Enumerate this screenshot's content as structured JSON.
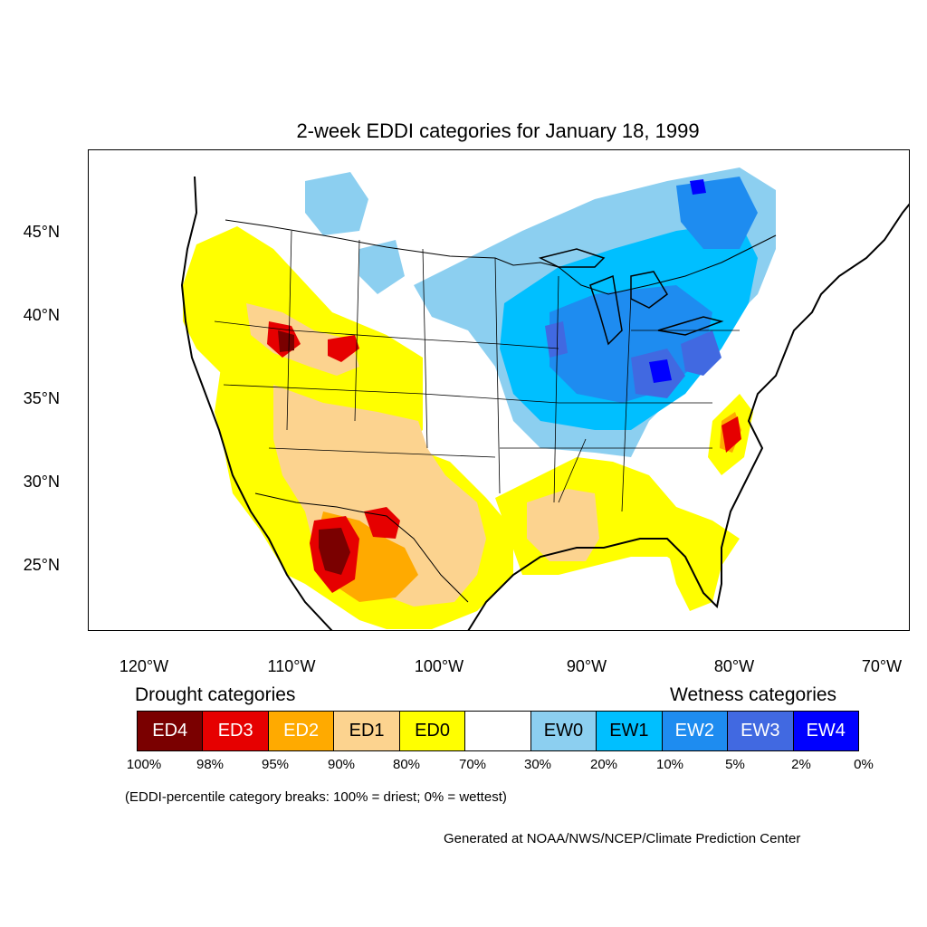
{
  "title": "2-week EDDI categories for January 18, 1999",
  "latitude_labels": [
    "45°N",
    "40°N",
    "35°N",
    "30°N",
    "25°N"
  ],
  "longitude_labels": [
    "120°W",
    "110°W",
    "100°W",
    "90°W",
    "80°W",
    "70°W"
  ],
  "legend": {
    "drought_heading": "Drought categories",
    "wetness_heading": "Wetness categories",
    "categories": [
      {
        "label": "ED4",
        "color": "#7a0000",
        "text_color": "#ffffff"
      },
      {
        "label": "ED3",
        "color": "#e60000",
        "text_color": "#ffffff"
      },
      {
        "label": "ED2",
        "color": "#ffaa00",
        "text_color": "#ffffff"
      },
      {
        "label": "ED1",
        "color": "#fcd38f",
        "text_color": "#000000"
      },
      {
        "label": "ED0",
        "color": "#ffff00",
        "text_color": "#000000"
      },
      {
        "label": "",
        "color": "#ffffff",
        "text_color": "#000000"
      },
      {
        "label": "EW0",
        "color": "#8ccff0",
        "text_color": "#000000"
      },
      {
        "label": "EW1",
        "color": "#00bfff",
        "text_color": "#000000"
      },
      {
        "label": "EW2",
        "color": "#1e8cf0",
        "text_color": "#ffffff"
      },
      {
        "label": "EW3",
        "color": "#4169e1",
        "text_color": "#ffffff"
      },
      {
        "label": "EW4",
        "color": "#0000ff",
        "text_color": "#ffffff"
      }
    ],
    "percentile_breaks": [
      "100%",
      "98%",
      "95%",
      "90%",
      "80%",
      "70%",
      "30%",
      "20%",
      "10%",
      "5%",
      "2%",
      "0%"
    ]
  },
  "breaks_note": "(EDDI-percentile category breaks: 100% = driest; 0% = wettest)",
  "credit": "Generated at NOAA/NWS/NCEP/Climate Prediction Center"
}
